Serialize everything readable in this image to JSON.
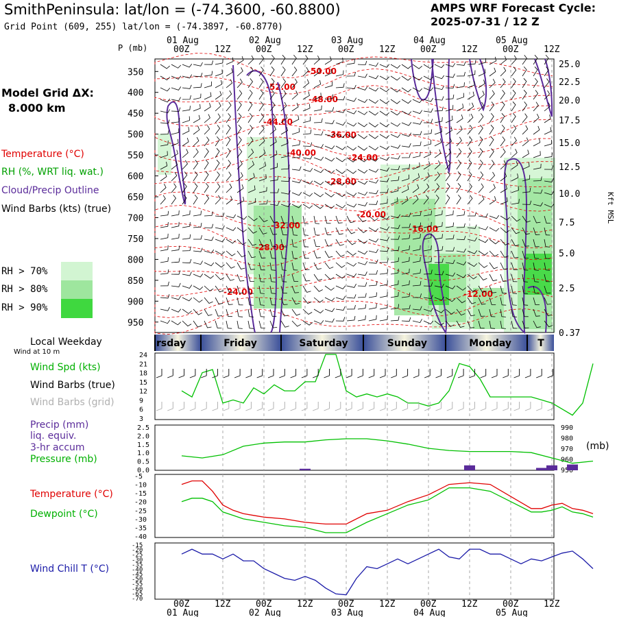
{
  "header": {
    "title": "SmithPeninsula:  lat/lon = (-74.3600, -60.8800)",
    "subtitle": "Grid Point (609, 255) lat/lon = (-74.3897, -60.8770)",
    "cycle_line1": "AMPS WRF Forecast Cycle:",
    "cycle_line2": "2025-07-31 / 12  Z"
  },
  "model_grid": {
    "label": "Model Grid ΔX:",
    "value": "8.000 km"
  },
  "sounding_legend": {
    "temperature": "Temperature (°C)",
    "rh": "RH (%, WRT liq. wat.)",
    "cloud": "Cloud/Precip Outline",
    "wind": "Wind Barbs (kts) (true)",
    "rh70": "RH > 70%",
    "rh80": "RH > 80%",
    "rh90": "RH > 90%"
  },
  "colors": {
    "temp": "#e00000",
    "rh": "#00a000",
    "cloud": "#5a2b9a",
    "rh70": "#d2f5d2",
    "rh80": "#9ee69e",
    "rh90": "#3fd83f",
    "dewpoint": "#00c000",
    "windchill": "#1a1aa8",
    "precip": "#5a2b9a",
    "weekday_dark": "#3a4f9a",
    "weekday_light": "#f6f4de"
  },
  "top_axis": {
    "p_label": "P (mb)",
    "date_labels": [
      "01 Aug",
      "02 Aug",
      "03 Aug",
      "04 Aug",
      "05 Aug"
    ],
    "hour_labels": [
      "00Z",
      "12Z",
      "00Z",
      "12Z",
      "00Z",
      "12Z",
      "00Z",
      "12Z",
      "00Z",
      "12Z"
    ],
    "right_label": "Kft MSL"
  },
  "bottom_axis": {
    "hour_labels": [
      "00Z",
      "12Z",
      "00Z",
      "12Z",
      "00Z",
      "12Z",
      "00Z",
      "12Z",
      "00Z",
      "12Z"
    ],
    "date_labels": [
      "01 Aug",
      "02 Aug",
      "03 Aug",
      "04 Aug",
      "05 Aug"
    ]
  },
  "weekday_bar": {
    "label": "Local Weekday",
    "days": [
      "rsday",
      "Friday",
      "Saturday",
      "Sunday",
      "Monday",
      "T"
    ]
  },
  "wind_panel": {
    "subtitle": "Wind at 10 m",
    "legend": [
      "Wind Spd (kts)",
      "Wind Barbs (true)",
      "Wind Barbs (grid)"
    ]
  },
  "precip_panel": {
    "legend": [
      "Precip (mm)",
      "liq. equiv.",
      "3-hr accum",
      "Pressure (mb)"
    ],
    "right_unit": "(mb)"
  },
  "temp_panel": {
    "legend": [
      "Temperature (°C)",
      "Dewpoint (°C)"
    ]
  },
  "chill_panel": {
    "legend": [
      "Wind Chill T (°C)"
    ]
  },
  "chart_data": [
    {
      "type": "heatmap",
      "y_ticks_left": [
        350,
        400,
        450,
        500,
        550,
        600,
        650,
        700,
        750,
        800,
        850,
        900,
        950
      ],
      "y_ticks_right": [
        "25.0",
        "22.5",
        "20.0",
        "17.5",
        "15.0",
        "12.5",
        "10.0",
        "7.5",
        "5.0",
        "2.5",
        "0.37"
      ],
      "temperature_contour_labels": [
        "-50.00",
        "-52.00",
        "-48.00",
        "-44.00",
        "-36.00",
        "-40.00",
        "-24.00",
        "-28.00",
        "-20.00",
        "-32.00",
        "-16.00",
        "-28.00",
        "-24.00",
        "-12.00"
      ]
    },
    {
      "type": "line",
      "name": "Wind Spd (kts)",
      "x_hours": [
        0,
        3,
        6,
        9,
        12,
        15,
        18,
        21,
        24,
        27,
        30,
        33,
        36,
        39,
        42,
        45,
        48,
        51,
        54,
        57,
        60,
        63,
        66,
        69,
        72,
        75,
        78,
        81,
        84,
        87,
        90,
        93,
        96,
        99,
        102,
        105,
        108,
        111,
        114,
        117,
        120
      ],
      "values": [
        12,
        10,
        18,
        19,
        8,
        9,
        8,
        13,
        11,
        14,
        12,
        12,
        15,
        15,
        24,
        24,
        12,
        10,
        11,
        10,
        11,
        10,
        8,
        8,
        7,
        8,
        12,
        21,
        20,
        16,
        10,
        10,
        10,
        10,
        10,
        9,
        8,
        6,
        4,
        8,
        21
      ],
      "ylim": [
        3,
        24
      ],
      "y_ticks": [
        3,
        6,
        9,
        12,
        15,
        18,
        21,
        24
      ]
    },
    {
      "type": "line",
      "name": "Pressure (mb)",
      "x_hours": [
        0,
        6,
        12,
        18,
        24,
        30,
        36,
        42,
        48,
        54,
        60,
        66,
        72,
        78,
        84,
        90,
        96,
        102,
        108,
        114,
        120
      ],
      "values": [
        963,
        961,
        964,
        972,
        975,
        976,
        976,
        978,
        979,
        979,
        977,
        974,
        970,
        968,
        967,
        967,
        967,
        966,
        961,
        956,
        958
      ],
      "y_ticks_right": [
        950,
        960,
        970,
        980,
        990
      ]
    },
    {
      "type": "bar",
      "name": "Precip (mm)",
      "bars": [
        {
          "x_hours": 36,
          "value": 0.05
        },
        {
          "x_hours": 84,
          "value": 0.25
        },
        {
          "x_hours": 105,
          "value": 0.1
        },
        {
          "x_hours": 108,
          "value": 0.25
        },
        {
          "x_hours": 114,
          "value": 0.3
        }
      ],
      "ylim": [
        0,
        2.5
      ],
      "y_ticks": [
        "0.0",
        "0.5",
        "1.0",
        "1.5",
        "2.0",
        "2.5"
      ]
    },
    {
      "type": "line",
      "series": [
        {
          "name": "Temperature (°C)",
          "x_hours": [
            0,
            3,
            6,
            9,
            12,
            15,
            18,
            21,
            24,
            30,
            36,
            42,
            48,
            54,
            60,
            66,
            72,
            78,
            84,
            90,
            96,
            102,
            105,
            108,
            111,
            114,
            117,
            120
          ],
          "values": [
            -10,
            -8,
            -8,
            -14,
            -22,
            -25,
            -27,
            -28,
            -29,
            -30,
            -32,
            -33,
            -33,
            -27,
            -25,
            -20,
            -16,
            -10,
            -9,
            -10,
            -17,
            -24,
            -24,
            -22,
            -21,
            -24,
            -25,
            -27
          ]
        },
        {
          "name": "Dewpoint (°C)",
          "x_hours": [
            0,
            3,
            6,
            9,
            12,
            15,
            18,
            21,
            24,
            30,
            36,
            42,
            48,
            54,
            60,
            66,
            72,
            78,
            84,
            90,
            96,
            102,
            105,
            108,
            111,
            114,
            117,
            120
          ],
          "values": [
            -20,
            -18,
            -18,
            -20,
            -26,
            -28,
            -30,
            -31,
            -32,
            -34,
            -35,
            -38,
            -38,
            -32,
            -27,
            -22,
            -19,
            -12,
            -12,
            -14,
            -20,
            -26,
            -26,
            -25,
            -23,
            -26,
            -27,
            -29
          ]
        }
      ],
      "ylim": [
        -40,
        -5
      ],
      "y_ticks": [
        -40,
        -35,
        -30,
        -25,
        -20,
        -15,
        -10,
        -5
      ]
    },
    {
      "type": "line",
      "name": "Wind Chill T (°C)",
      "x_hours": [
        0,
        3,
        6,
        9,
        12,
        15,
        18,
        21,
        24,
        27,
        30,
        33,
        36,
        39,
        42,
        45,
        48,
        51,
        54,
        57,
        60,
        63,
        66,
        69,
        72,
        75,
        78,
        81,
        84,
        87,
        90,
        93,
        96,
        99,
        102,
        105,
        108,
        111,
        114,
        117,
        120
      ],
      "values": [
        -25,
        -20,
        -25,
        -25,
        -30,
        -25,
        -32,
        -32,
        -40,
        -45,
        -50,
        -52,
        -48,
        -52,
        -60,
        -66,
        -67,
        -50,
        -38,
        -40,
        -35,
        -30,
        -35,
        -30,
        -25,
        -20,
        -28,
        -30,
        -20,
        -20,
        -25,
        -25,
        -30,
        -35,
        -30,
        -32,
        -28,
        -24,
        -22,
        -30,
        -40
      ],
      "ylim": [
        -70,
        -15
      ],
      "y_ticks": [
        -70,
        -65,
        -60,
        -55,
        -50,
        -45,
        -40,
        -35,
        -30,
        -25,
        -20,
        -15
      ]
    }
  ]
}
